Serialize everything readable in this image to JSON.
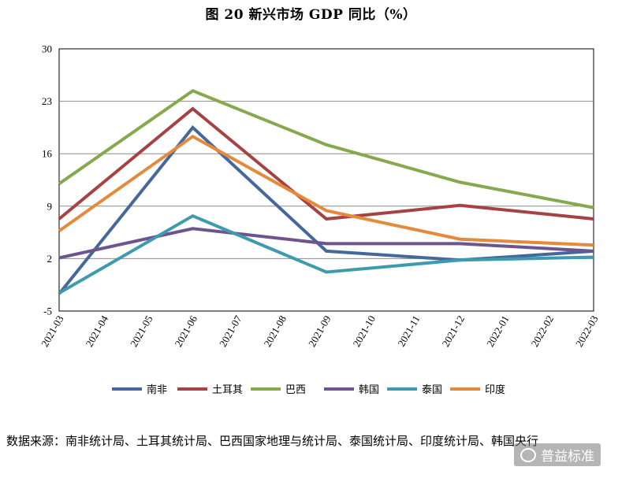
{
  "title": "图 20  新兴市场 GDP 同比（%）",
  "source_text": "数据来源：南非统计局、土耳其统计局、巴西国家地理与统计局、泰国统计局、印度统计局、韩国央行",
  "watermark": "普益标准",
  "chart_data": {
    "type": "line",
    "title": "图 20  新兴市场 GDP 同比（%）",
    "xlabel": "",
    "ylabel": "",
    "ylim": [
      -5,
      30
    ],
    "yticks": [
      30,
      23,
      16,
      9,
      2,
      -5
    ],
    "grid": true,
    "legend_position": "bottom",
    "x": [
      "2021-03",
      "2021-04",
      "2021-05",
      "2021-06",
      "2021-07",
      "2021-08",
      "2021-09",
      "2021-10",
      "2021-11",
      "2021-12",
      "2022-01",
      "2022-02",
      "2022-03"
    ],
    "series": [
      {
        "name": "南非",
        "color": "#44689e",
        "points": [
          [
            0,
            -2.7
          ],
          [
            3,
            19.5
          ],
          [
            6,
            3.0
          ],
          [
            9,
            1.8
          ],
          [
            12,
            3.0
          ]
        ]
      },
      {
        "name": "土耳其",
        "color": "#a64342",
        "points": [
          [
            0,
            7.3
          ],
          [
            3,
            22.0
          ],
          [
            6,
            7.3
          ],
          [
            9,
            9.1
          ],
          [
            12,
            7.3
          ]
        ]
      },
      {
        "name": "巴西",
        "color": "#86a94e",
        "points": [
          [
            0,
            12.0
          ],
          [
            3,
            24.4
          ],
          [
            6,
            17.2
          ],
          [
            9,
            12.2
          ],
          [
            12,
            8.8
          ]
        ]
      },
      {
        "name": "韩国",
        "color": "#6e548e",
        "points": [
          [
            0,
            2.1
          ],
          [
            3,
            6.0
          ],
          [
            6,
            4.0
          ],
          [
            9,
            4.0
          ],
          [
            12,
            3.0
          ]
        ]
      },
      {
        "name": "泰国",
        "color": "#3d9bad",
        "points": [
          [
            0,
            -2.6
          ],
          [
            3,
            7.7
          ],
          [
            6,
            0.2
          ],
          [
            9,
            1.8
          ],
          [
            12,
            2.2
          ]
        ]
      },
      {
        "name": "印度",
        "color": "#e58a3d",
        "points": [
          [
            0,
            5.7
          ],
          [
            3,
            18.3
          ],
          [
            6,
            8.4
          ],
          [
            9,
            4.6
          ],
          [
            12,
            3.8
          ]
        ]
      }
    ]
  }
}
